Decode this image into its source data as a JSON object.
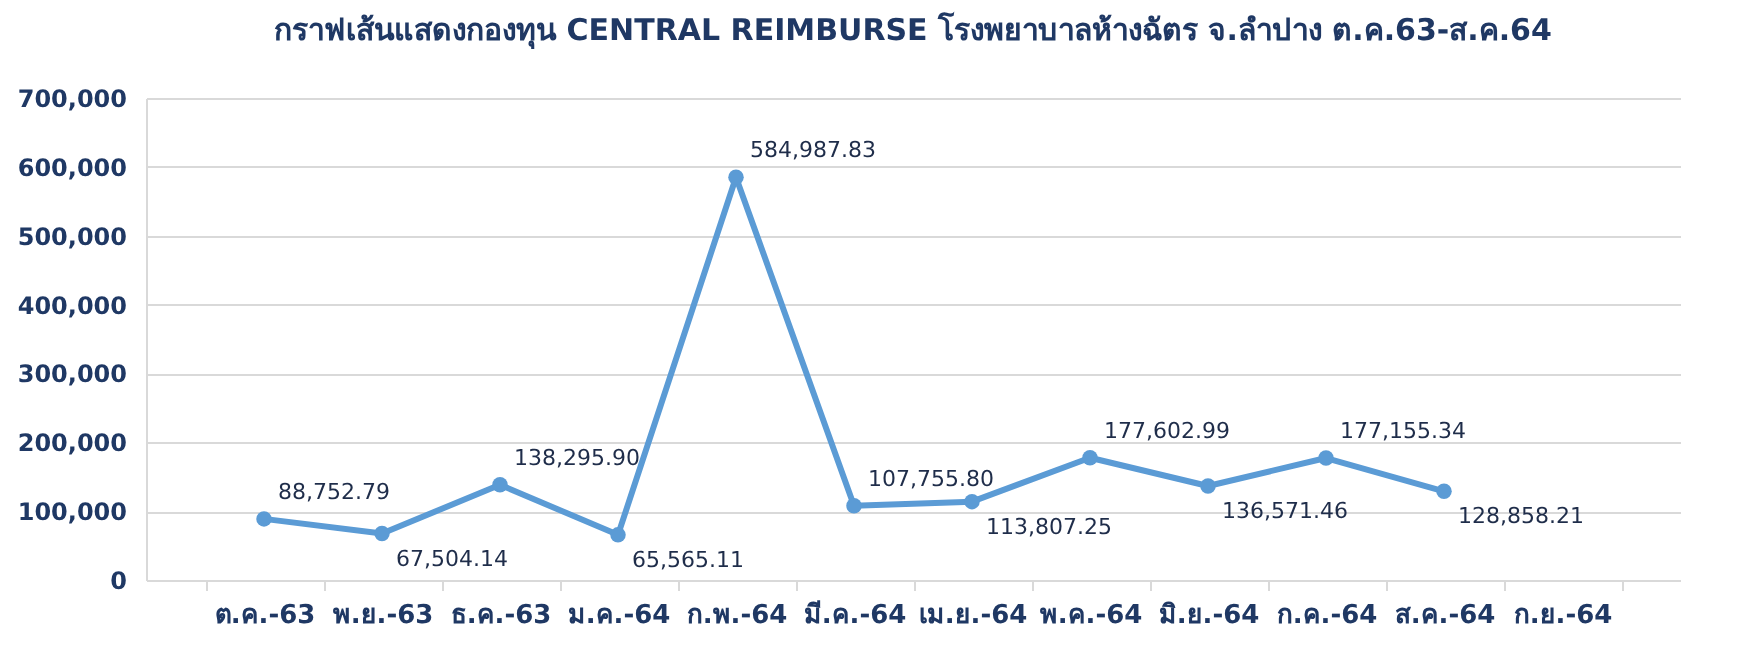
{
  "chart_data": {
    "type": "line",
    "title": "กราฟเส้นแสดงกองทุน CENTRAL REIMBURSE โรงพยาบาลห้างฉัตร จ.ลำปาง ต.ค.63-ส.ค.64",
    "categories": [
      "ต.ค.-63",
      "พ.ย.-63",
      "ธ.ค.-63",
      "ม.ค.-64",
      "ก.พ.-64",
      "มี.ค.-64",
      "เม.ย.-64",
      "พ.ค.-64",
      "มิ.ย.-64",
      "ก.ค.-64",
      "ส.ค.-64",
      "ก.ย.-64"
    ],
    "series": [
      {
        "color": "#5b9bd5",
        "values": [
          88752.79,
          67504.14,
          138295.9,
          65565.11,
          584987.83,
          107755.8,
          113807.25,
          177602.99,
          136571.46,
          177155.34,
          128858.21,
          null
        ]
      }
    ],
    "ylim": [
      0,
      700000
    ],
    "yticks": [
      0,
      {
        "value": 100000,
        "label": "100,000"
      },
      {
        "value": 200000,
        "label": "200,000"
      },
      {
        "value": 300000,
        "label": "300,000"
      },
      {
        "value": 400000,
        "label": "400,000"
      },
      {
        "value": 500000,
        "label": "500,000"
      },
      {
        "value": 600000,
        "label": "600,000"
      },
      {
        "value": 700000,
        "label": "700,000"
      }
    ],
    "value_labels": [
      "88,752.79",
      "67,504.14",
      "138,295.90",
      "65,565.11",
      "584,987.83",
      "107,755.80",
      "113,807.25",
      "177,602.99",
      "136,571.46",
      "177,155.34",
      "128,858.21",
      null
    ],
    "grid": "y",
    "marker": "circle",
    "legend": false
  }
}
